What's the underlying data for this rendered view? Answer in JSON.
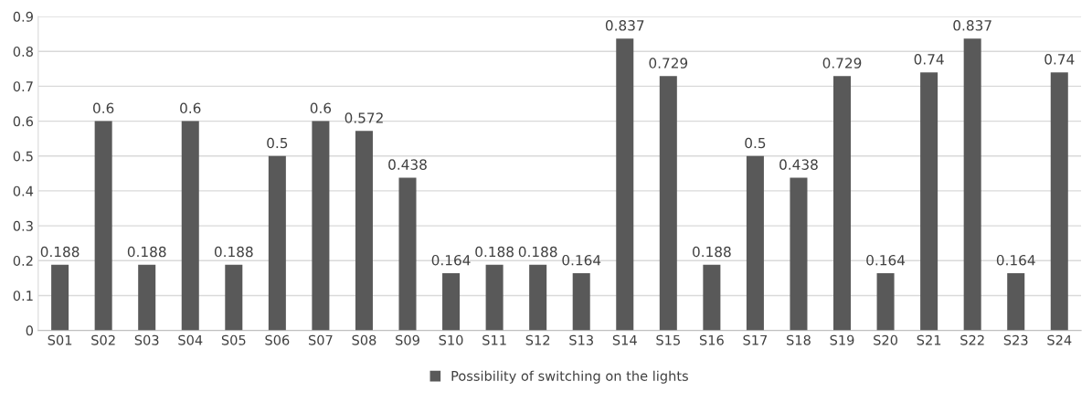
{
  "chart_data": {
    "type": "bar",
    "categories": [
      "S01",
      "S02",
      "S03",
      "S04",
      "S05",
      "S06",
      "S07",
      "S08",
      "S09",
      "S10",
      "S11",
      "S12",
      "S13",
      "S14",
      "S15",
      "S16",
      "S17",
      "S18",
      "S19",
      "S20",
      "S21",
      "S22",
      "S23",
      "S24"
    ],
    "series": [
      {
        "name": "Possibility of switching on the lights",
        "color": "#595959",
        "values": [
          0.188,
          0.6,
          0.188,
          0.6,
          0.188,
          0.5,
          0.6,
          0.572,
          0.438,
          0.164,
          0.188,
          0.188,
          0.164,
          0.837,
          0.729,
          0.188,
          0.5,
          0.438,
          0.729,
          0.164,
          0.74,
          0.837,
          0.164,
          0.74
        ]
      }
    ],
    "ylim": [
      0,
      0.9
    ],
    "yticks": [
      0,
      0.1,
      0.2,
      0.3,
      0.4,
      0.5,
      0.6,
      0.7,
      0.8,
      0.9
    ],
    "grid": "y",
    "legend": "bottom",
    "data_labels": true
  }
}
